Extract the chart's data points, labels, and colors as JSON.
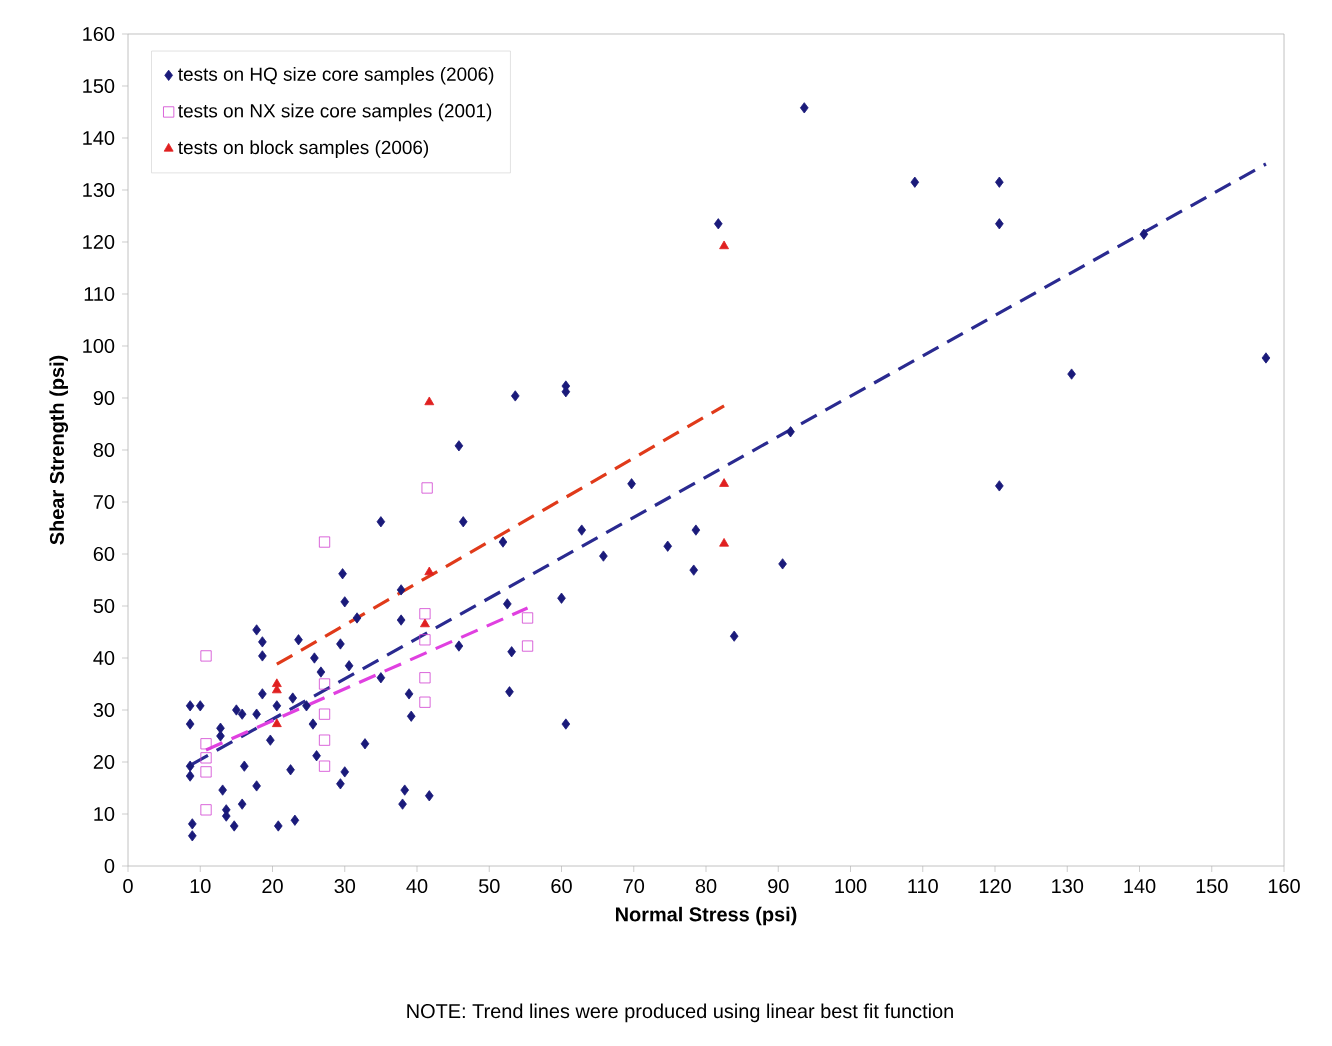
{
  "chart_data": {
    "type": "scatter",
    "xlabel": "Normal Stress (psi)",
    "ylabel": "Shear Strength (psi)",
    "xlim": [
      0,
      160
    ],
    "ylim": [
      0,
      160
    ],
    "xticks": [
      0,
      10,
      20,
      30,
      40,
      50,
      60,
      70,
      80,
      90,
      100,
      110,
      120,
      130,
      140,
      150,
      160
    ],
    "yticks": [
      0,
      10,
      20,
      30,
      40,
      50,
      60,
      70,
      80,
      90,
      100,
      110,
      120,
      130,
      140,
      150,
      160
    ],
    "grid": false,
    "legend": "top left",
    "annotations": [
      "NOTE:  Trend lines were produced using linear best fit function"
    ],
    "series": [
      {
        "name": "tests on HQ size core samples (2006)",
        "marker": "diamond",
        "color": "#1a1a7a",
        "x": [
          8.6,
          10,
          8.6,
          12.8,
          12.8,
          15,
          15.8,
          17.8,
          18.6,
          20.6,
          22.8,
          24.7,
          25.6,
          19.7,
          26.1,
          32.8,
          8.6,
          8.6,
          16.1,
          13.1,
          17.8,
          30,
          29.4,
          22.5,
          13.6,
          13.6,
          15.8,
          14.7,
          8.9,
          8.9,
          20.8,
          23.1,
          38.3,
          38,
          41.7,
          35,
          46.4,
          29.7,
          30,
          37.8,
          31.7,
          37.8,
          51.9,
          52.5,
          17.8,
          18.6,
          23.6,
          18.6,
          29.4,
          25.8,
          26.7,
          30.6,
          35,
          45.8,
          53.1,
          52.8,
          38.9,
          39.2,
          53.6,
          60.6,
          60.6,
          45.8,
          69.7,
          62.8,
          65.8,
          74.7,
          78.6,
          78.3,
          60,
          60.6,
          83.9,
          81.7,
          93.6,
          108.9,
          120.6,
          120.6,
          140.6,
          157.5,
          130.6,
          120.6,
          91.7,
          90.6
        ],
        "values": [
          30.8,
          30.8,
          27.3,
          26.5,
          25,
          30,
          29.2,
          29.2,
          33.1,
          30.8,
          32.3,
          30.8,
          27.3,
          24.2,
          21.2,
          23.5,
          19.2,
          17.3,
          19.2,
          14.6,
          15.4,
          18.1,
          15.8,
          18.5,
          10.8,
          9.6,
          11.9,
          7.7,
          8.1,
          5.8,
          7.7,
          8.8,
          14.6,
          11.9,
          13.5,
          66.2,
          66.2,
          56.2,
          50.8,
          53.1,
          47.7,
          47.3,
          62.3,
          50.4,
          45.4,
          43.1,
          43.5,
          40.4,
          42.7,
          40,
          37.3,
          38.5,
          36.2,
          42.3,
          41.2,
          33.5,
          33.1,
          28.8,
          90.4,
          92.3,
          91.2,
          80.8,
          73.5,
          64.6,
          59.6,
          61.5,
          64.6,
          56.9,
          51.5,
          27.3,
          44.2,
          123.5,
          145.8,
          131.5,
          131.5,
          123.5,
          121.5,
          97.7,
          94.6,
          73.1,
          83.5,
          58.1
        ]
      },
      {
        "name": "tests on NX size core samples (2001)",
        "marker": "square",
        "color": "#d040d0",
        "x": [
          41.4,
          27.2,
          10.8,
          41.1,
          41.1,
          41.1,
          41.1,
          27.2,
          27.2,
          27.2,
          27.2,
          10.8,
          10.8,
          10.8,
          10.8,
          55.3,
          55.3
        ],
        "values": [
          72.7,
          62.3,
          40.4,
          48.5,
          43.5,
          36.2,
          31.5,
          35,
          29.2,
          24.2,
          19.2,
          23.5,
          20.8,
          18.1,
          10.8,
          47.7,
          42.3
        ]
      },
      {
        "name": "tests on block samples (2006)",
        "marker": "triangle",
        "color": "#e02020",
        "x": [
          20.6,
          20.6,
          20.6,
          41.1,
          41.7,
          41.7,
          82.5,
          82.5,
          82.5
        ],
        "values": [
          35,
          33.8,
          27.3,
          46.5,
          56.5,
          89.2,
          119.2,
          73.5,
          62
        ]
      },
      {
        "type": "line",
        "line_style": "dashed",
        "color": "#2a2a90",
        "x": [
          8.9,
          157.5
        ],
        "values": [
          19.6,
          135
        ]
      },
      {
        "type": "line",
        "line_style": "dashed",
        "color": "#e040e0",
        "x": [
          10.8,
          55.3
        ],
        "values": [
          22.3,
          49.6
        ]
      },
      {
        "type": "line",
        "line_style": "dashed",
        "color": "#e03a1a",
        "x": [
          20.6,
          82.5
        ],
        "values": [
          38.8,
          88.5
        ]
      }
    ]
  }
}
